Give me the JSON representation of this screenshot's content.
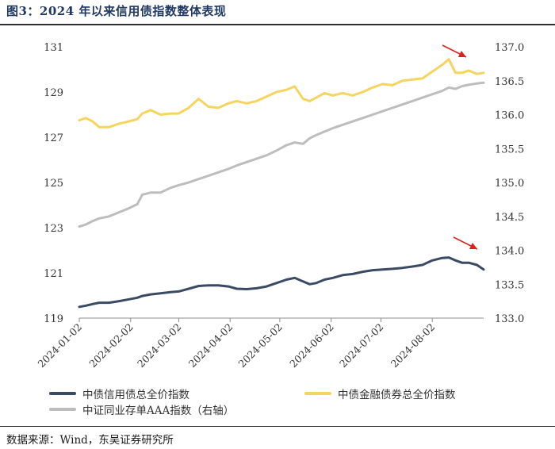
{
  "title": "图3：2024 年以来信用债指数整体表现",
  "source": "数据来源：Wind，东吴证券研究所",
  "chart_data": {
    "type": "line",
    "title": "",
    "xlabel": "",
    "ylabel": "",
    "y_left": {
      "range": [
        119,
        131
      ],
      "ticks": [
        119,
        121,
        123,
        125,
        127,
        129,
        131
      ],
      "tick_labels": [
        "119",
        "121",
        "123",
        "125",
        "127",
        "129",
        "131"
      ]
    },
    "y_right": {
      "range": [
        133.0,
        137.0
      ],
      "ticks": [
        133.0,
        133.5,
        134.0,
        134.5,
        135.0,
        135.5,
        136.0,
        136.5,
        137.0
      ],
      "tick_labels": [
        "133.0",
        "133.5",
        "134.0",
        "134.5",
        "135.0",
        "135.5",
        "136.0",
        "136.5",
        "137.0"
      ]
    },
    "x_axis": {
      "range": [
        "2024-01-02",
        "2024-09-02"
      ],
      "ticks": [
        "2024-01-02",
        "2024-02-02",
        "2024-03-02",
        "2024-04-02",
        "2024-05-02",
        "2024-06-02",
        "2024-07-02",
        "2024-08-02"
      ]
    },
    "grid": false,
    "legend_position": "bottom",
    "series": [
      {
        "name": "中债信用债总全价指数",
        "axis": "left",
        "color": "#3b4a63",
        "points": [
          [
            "2024-01-02",
            119.5
          ],
          [
            "2024-01-06",
            119.55
          ],
          [
            "2024-01-10",
            119.62
          ],
          [
            "2024-01-14",
            119.68
          ],
          [
            "2024-01-20",
            119.68
          ],
          [
            "2024-01-26",
            119.75
          ],
          [
            "2024-02-01",
            119.83
          ],
          [
            "2024-02-06",
            119.9
          ],
          [
            "2024-02-09",
            119.98
          ],
          [
            "2024-02-14",
            120.05
          ],
          [
            "2024-02-20",
            120.1
          ],
          [
            "2024-02-26",
            120.15
          ],
          [
            "2024-03-02",
            120.18
          ],
          [
            "2024-03-08",
            120.3
          ],
          [
            "2024-03-14",
            120.42
          ],
          [
            "2024-03-20",
            120.45
          ],
          [
            "2024-03-26",
            120.45
          ],
          [
            "2024-04-01",
            120.4
          ],
          [
            "2024-04-06",
            120.3
          ],
          [
            "2024-04-12",
            120.28
          ],
          [
            "2024-04-18",
            120.32
          ],
          [
            "2024-04-24",
            120.4
          ],
          [
            "2024-04-30",
            120.55
          ],
          [
            "2024-05-06",
            120.7
          ],
          [
            "2024-05-11",
            120.78
          ],
          [
            "2024-05-16",
            120.62
          ],
          [
            "2024-05-20",
            120.5
          ],
          [
            "2024-05-24",
            120.55
          ],
          [
            "2024-05-29",
            120.7
          ],
          [
            "2024-06-03",
            120.78
          ],
          [
            "2024-06-09",
            120.9
          ],
          [
            "2024-06-15",
            120.95
          ],
          [
            "2024-06-21",
            121.05
          ],
          [
            "2024-06-27",
            121.12
          ],
          [
            "2024-07-03",
            121.15
          ],
          [
            "2024-07-09",
            121.18
          ],
          [
            "2024-07-15",
            121.22
          ],
          [
            "2024-07-21",
            121.28
          ],
          [
            "2024-07-27",
            121.35
          ],
          [
            "2024-08-02",
            121.55
          ],
          [
            "2024-08-08",
            121.66
          ],
          [
            "2024-08-12",
            121.68
          ],
          [
            "2024-08-16",
            121.55
          ],
          [
            "2024-08-20",
            121.45
          ],
          [
            "2024-08-24",
            121.45
          ],
          [
            "2024-08-29",
            121.35
          ],
          [
            "2024-09-02",
            121.15
          ]
        ]
      },
      {
        "name": "中债金融债券总全价指数",
        "axis": "left",
        "color": "#f5d55f",
        "points": [
          [
            "2024-01-02",
            127.75
          ],
          [
            "2024-01-06",
            127.85
          ],
          [
            "2024-01-10",
            127.7
          ],
          [
            "2024-01-14",
            127.45
          ],
          [
            "2024-01-20",
            127.45
          ],
          [
            "2024-01-26",
            127.6
          ],
          [
            "2024-02-01",
            127.7
          ],
          [
            "2024-02-06",
            127.8
          ],
          [
            "2024-02-09",
            128.05
          ],
          [
            "2024-02-14",
            128.2
          ],
          [
            "2024-02-20",
            128.0
          ],
          [
            "2024-02-26",
            128.05
          ],
          [
            "2024-03-02",
            128.05
          ],
          [
            "2024-03-08",
            128.3
          ],
          [
            "2024-03-14",
            128.7
          ],
          [
            "2024-03-20",
            128.35
          ],
          [
            "2024-03-26",
            128.3
          ],
          [
            "2024-04-01",
            128.5
          ],
          [
            "2024-04-06",
            128.6
          ],
          [
            "2024-04-12",
            128.5
          ],
          [
            "2024-04-18",
            128.6
          ],
          [
            "2024-04-24",
            128.8
          ],
          [
            "2024-04-30",
            129.0
          ],
          [
            "2024-05-06",
            129.1
          ],
          [
            "2024-05-11",
            129.25
          ],
          [
            "2024-05-16",
            128.7
          ],
          [
            "2024-05-20",
            128.6
          ],
          [
            "2024-05-24",
            128.75
          ],
          [
            "2024-05-29",
            128.95
          ],
          [
            "2024-06-03",
            128.85
          ],
          [
            "2024-06-09",
            128.95
          ],
          [
            "2024-06-15",
            128.85
          ],
          [
            "2024-06-21",
            129.0
          ],
          [
            "2024-06-27",
            129.2
          ],
          [
            "2024-07-03",
            129.35
          ],
          [
            "2024-07-09",
            129.3
          ],
          [
            "2024-07-15",
            129.5
          ],
          [
            "2024-07-21",
            129.55
          ],
          [
            "2024-07-27",
            129.6
          ],
          [
            "2024-08-02",
            129.9
          ],
          [
            "2024-08-08",
            130.2
          ],
          [
            "2024-08-12",
            130.45
          ],
          [
            "2024-08-16",
            129.85
          ],
          [
            "2024-08-20",
            129.85
          ],
          [
            "2024-08-24",
            129.95
          ],
          [
            "2024-08-29",
            129.8
          ],
          [
            "2024-09-02",
            129.85
          ]
        ]
      },
      {
        "name": "中证同业存单AAA指数（右轴）",
        "axis": "right",
        "color": "#bdbdbd",
        "points": [
          [
            "2024-01-02",
            134.35
          ],
          [
            "2024-01-06",
            134.38
          ],
          [
            "2024-01-10",
            134.43
          ],
          [
            "2024-01-14",
            134.47
          ],
          [
            "2024-01-20",
            134.5
          ],
          [
            "2024-01-26",
            134.56
          ],
          [
            "2024-02-01",
            134.62
          ],
          [
            "2024-02-06",
            134.68
          ],
          [
            "2024-02-09",
            134.82
          ],
          [
            "2024-02-14",
            134.85
          ],
          [
            "2024-02-20",
            134.85
          ],
          [
            "2024-02-26",
            134.92
          ],
          [
            "2024-03-02",
            134.96
          ],
          [
            "2024-03-08",
            135.0
          ],
          [
            "2024-03-14",
            135.05
          ],
          [
            "2024-03-20",
            135.1
          ],
          [
            "2024-03-26",
            135.15
          ],
          [
            "2024-04-01",
            135.2
          ],
          [
            "2024-04-06",
            135.25
          ],
          [
            "2024-04-12",
            135.3
          ],
          [
            "2024-04-18",
            135.35
          ],
          [
            "2024-04-24",
            135.4
          ],
          [
            "2024-04-30",
            135.47
          ],
          [
            "2024-05-06",
            135.55
          ],
          [
            "2024-05-11",
            135.59
          ],
          [
            "2024-05-16",
            135.57
          ],
          [
            "2024-05-20",
            135.65
          ],
          [
            "2024-05-24",
            135.7
          ],
          [
            "2024-05-29",
            135.75
          ],
          [
            "2024-06-03",
            135.8
          ],
          [
            "2024-06-09",
            135.85
          ],
          [
            "2024-06-15",
            135.9
          ],
          [
            "2024-06-21",
            135.95
          ],
          [
            "2024-06-27",
            136.0
          ],
          [
            "2024-07-03",
            136.05
          ],
          [
            "2024-07-09",
            136.1
          ],
          [
            "2024-07-15",
            136.15
          ],
          [
            "2024-07-21",
            136.2
          ],
          [
            "2024-07-27",
            136.25
          ],
          [
            "2024-08-02",
            136.3
          ],
          [
            "2024-08-08",
            136.35
          ],
          [
            "2024-08-12",
            136.4
          ],
          [
            "2024-08-16",
            136.38
          ],
          [
            "2024-08-20",
            136.42
          ],
          [
            "2024-08-24",
            136.44
          ],
          [
            "2024-08-29",
            136.46
          ],
          [
            "2024-09-02",
            136.47
          ]
        ]
      }
    ],
    "annotations": [
      {
        "type": "arrow",
        "color": "#e0201b",
        "near_series": "中债金融债券总全价指数",
        "direction": "down-right"
      },
      {
        "type": "arrow",
        "color": "#e0201b",
        "near_series": "中债信用债总全价指数",
        "direction": "down-right"
      }
    ]
  }
}
